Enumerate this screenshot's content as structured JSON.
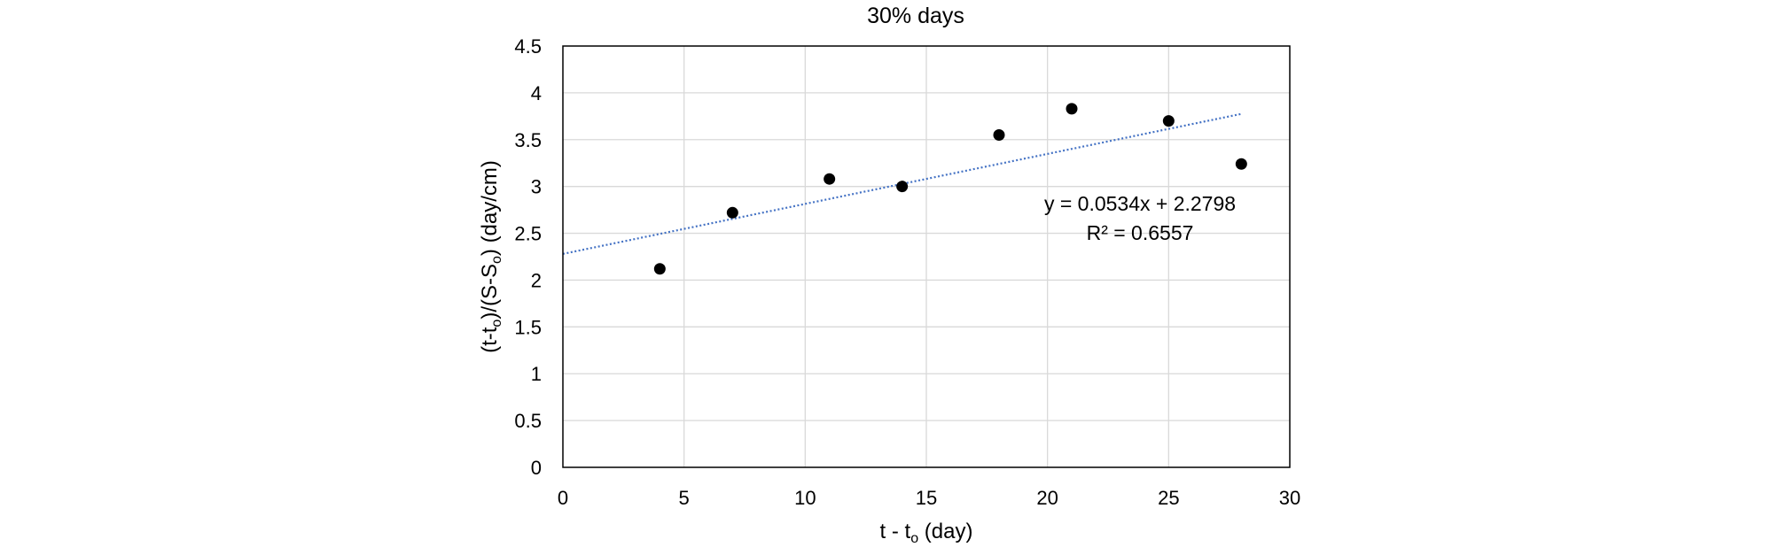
{
  "chart_data": {
    "type": "scatter",
    "title": "30% days",
    "xlabel": {
      "main": "t - t",
      "sub": "o",
      "rest": " (day)"
    },
    "ylabel": {
      "p1": "(t-t",
      "s1": "o",
      "p2": ")/(S-S",
      "s2": "o",
      "p3": ") (day/cm)"
    },
    "xlim": [
      0,
      30
    ],
    "ylim": [
      0,
      4.5
    ],
    "xticks": [
      0,
      5,
      10,
      15,
      20,
      25,
      30
    ],
    "yticks": [
      "0",
      "0.5",
      "1",
      "1.5",
      "2",
      "2.5",
      "3",
      "3.5",
      "4",
      "4.5"
    ],
    "grid": true,
    "series": [
      {
        "x": [
          4,
          7,
          11,
          14,
          18,
          21,
          25,
          28
        ],
        "y": [
          2.12,
          2.72,
          3.08,
          3.0,
          3.55,
          3.83,
          3.7,
          3.24
        ],
        "marker_color": "#000000"
      }
    ],
    "trendline": {
      "type": "linear",
      "slope": 0.0534,
      "intercept": 2.2798,
      "x_range": [
        0,
        28
      ],
      "color": "#4472C4",
      "style": "dotted",
      "equation_label": "y = 0.0534x + 2.2798",
      "r2_label": "R² = 0.6557"
    }
  }
}
